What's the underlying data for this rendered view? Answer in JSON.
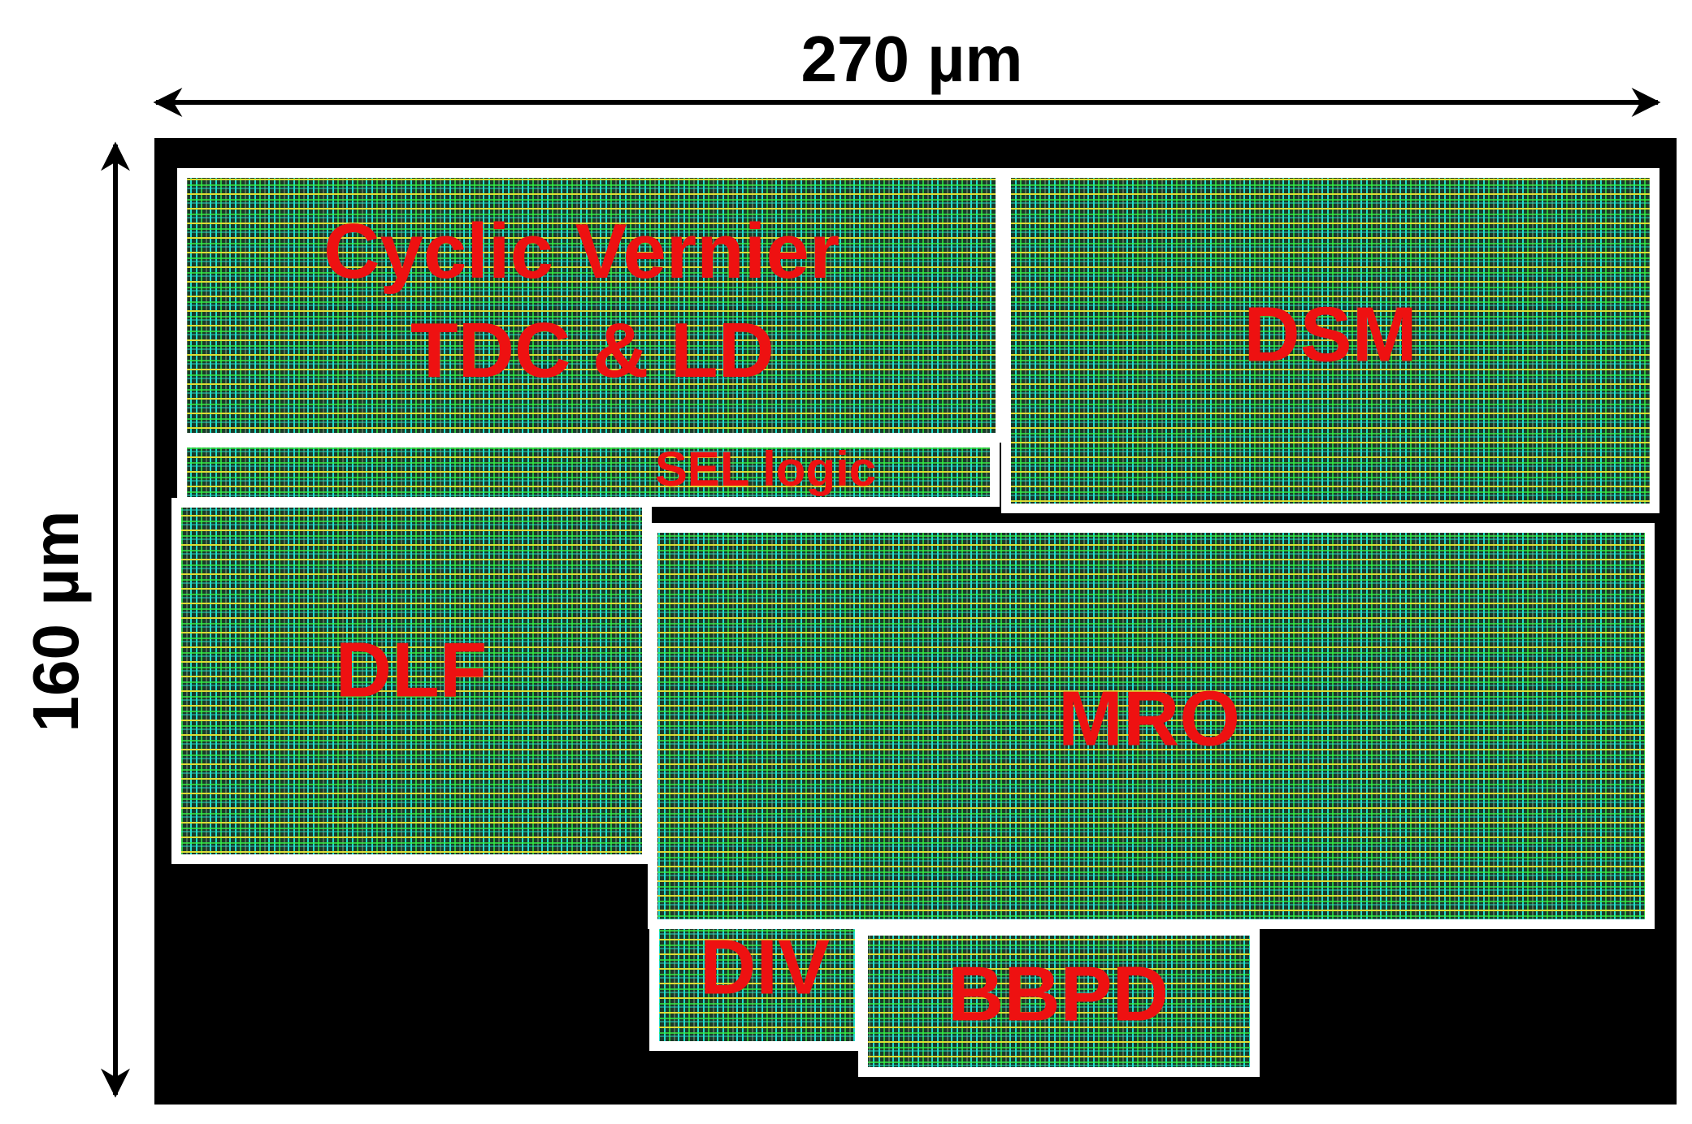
{
  "dimensions": {
    "width": "270 µm",
    "height": "160 µm"
  },
  "blocks": [
    {
      "lines": [
        "Cyclic Vernier",
        "TDC & LD"
      ]
    },
    {
      "lines": [
        "DSM"
      ]
    },
    {
      "lines": [
        "SEL logic"
      ]
    },
    {
      "lines": [
        "DLF"
      ]
    },
    {
      "lines": [
        "MRO"
      ]
    },
    {
      "lines": [
        "DIV"
      ]
    },
    {
      "lines": [
        "BBPD"
      ]
    }
  ]
}
